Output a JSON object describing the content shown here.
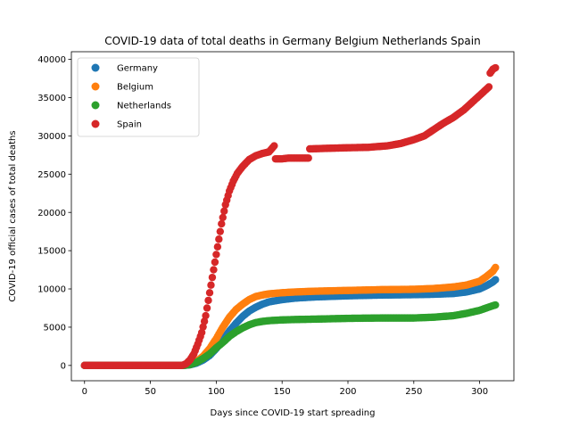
{
  "chart_data": {
    "type": "scatter",
    "title": "COVID-19 data of total deaths in Germany Belgium Netherlands Spain",
    "xlabel": "Days since COVID-19 start spreading",
    "ylabel": "COVID-19 official cases of total deaths",
    "xlim": [
      -10,
      326
    ],
    "ylim": [
      -2000,
      41000
    ],
    "xticks": [
      0,
      50,
      100,
      150,
      200,
      250,
      300
    ],
    "yticks": [
      0,
      5000,
      10000,
      15000,
      20000,
      25000,
      30000,
      35000,
      40000
    ],
    "grid": false,
    "legend_position": "upper left",
    "series": [
      {
        "name": "Germany",
        "color": "#1f77b4",
        "points": [
          [
            0,
            0
          ],
          [
            75,
            0
          ],
          [
            80,
            80
          ],
          [
            85,
            300
          ],
          [
            90,
            700
          ],
          [
            95,
            1300
          ],
          [
            100,
            2200
          ],
          [
            105,
            3300
          ],
          [
            110,
            4500
          ],
          [
            115,
            5500
          ],
          [
            120,
            6400
          ],
          [
            125,
            7100
          ],
          [
            130,
            7600
          ],
          [
            135,
            8000
          ],
          [
            140,
            8300
          ],
          [
            150,
            8600
          ],
          [
            160,
            8800
          ],
          [
            175,
            8950
          ],
          [
            200,
            9100
          ],
          [
            225,
            9200
          ],
          [
            250,
            9250
          ],
          [
            265,
            9300
          ],
          [
            280,
            9400
          ],
          [
            290,
            9600
          ],
          [
            300,
            10000
          ],
          [
            305,
            10400
          ],
          [
            310,
            10900
          ],
          [
            312,
            11200
          ]
        ]
      },
      {
        "name": "Belgium",
        "color": "#ff7f0e",
        "points": [
          [
            0,
            0
          ],
          [
            75,
            0
          ],
          [
            80,
            150
          ],
          [
            85,
            500
          ],
          [
            90,
            1200
          ],
          [
            95,
            2200
          ],
          [
            100,
            3500
          ],
          [
            105,
            5000
          ],
          [
            110,
            6300
          ],
          [
            115,
            7300
          ],
          [
            120,
            8000
          ],
          [
            125,
            8600
          ],
          [
            130,
            9000
          ],
          [
            135,
            9200
          ],
          [
            140,
            9350
          ],
          [
            150,
            9500
          ],
          [
            160,
            9600
          ],
          [
            175,
            9700
          ],
          [
            200,
            9800
          ],
          [
            225,
            9900
          ],
          [
            250,
            9950
          ],
          [
            265,
            10050
          ],
          [
            280,
            10250
          ],
          [
            290,
            10500
          ],
          [
            300,
            11000
          ],
          [
            305,
            11600
          ],
          [
            310,
            12300
          ],
          [
            312,
            12800
          ]
        ]
      },
      {
        "name": "Netherlands",
        "color": "#2ca02c",
        "points": [
          [
            0,
            0
          ],
          [
            75,
            0
          ],
          [
            80,
            100
          ],
          [
            85,
            400
          ],
          [
            90,
            900
          ],
          [
            95,
            1500
          ],
          [
            100,
            2300
          ],
          [
            105,
            3000
          ],
          [
            110,
            3800
          ],
          [
            115,
            4400
          ],
          [
            120,
            4900
          ],
          [
            125,
            5300
          ],
          [
            130,
            5600
          ],
          [
            135,
            5750
          ],
          [
            140,
            5850
          ],
          [
            150,
            5950
          ],
          [
            160,
            6000
          ],
          [
            175,
            6050
          ],
          [
            200,
            6150
          ],
          [
            225,
            6200
          ],
          [
            250,
            6200
          ],
          [
            265,
            6300
          ],
          [
            280,
            6500
          ],
          [
            290,
            6800
          ],
          [
            300,
            7200
          ],
          [
            305,
            7500
          ],
          [
            310,
            7800
          ],
          [
            312,
            7900
          ]
        ]
      },
      {
        "name": "Spain",
        "color": "#d62728",
        "points": [
          [
            0,
            0
          ],
          [
            74,
            0
          ],
          [
            77,
            200
          ],
          [
            80,
            700
          ],
          [
            83,
            1500
          ],
          [
            86,
            2800
          ],
          [
            89,
            4300
          ],
          [
            92,
            6500
          ],
          [
            95,
            9500
          ],
          [
            98,
            12500
          ],
          [
            101,
            15500
          ],
          [
            104,
            18500
          ],
          [
            107,
            21000
          ],
          [
            110,
            22800
          ],
          [
            113,
            24100
          ],
          [
            116,
            25100
          ],
          [
            120,
            26000
          ],
          [
            125,
            26900
          ],
          [
            130,
            27400
          ],
          [
            135,
            27700
          ],
          [
            140,
            27900
          ],
          [
            144,
            28700
          ],
          [
            145,
            27000
          ],
          [
            150,
            27000
          ],
          [
            155,
            27100
          ],
          [
            160,
            27100
          ],
          [
            170,
            27100
          ],
          [
            171,
            28300
          ],
          [
            180,
            28350
          ],
          [
            190,
            28400
          ],
          [
            200,
            28450
          ],
          [
            215,
            28500
          ],
          [
            230,
            28700
          ],
          [
            240,
            29000
          ],
          [
            250,
            29500
          ],
          [
            258,
            30000
          ],
          [
            265,
            30800
          ],
          [
            272,
            31600
          ],
          [
            280,
            32400
          ],
          [
            288,
            33400
          ],
          [
            295,
            34500
          ],
          [
            302,
            35600
          ],
          [
            307,
            36400
          ],
          [
            308,
            38200
          ],
          [
            310,
            38700
          ],
          [
            312,
            38900
          ]
        ]
      }
    ]
  }
}
